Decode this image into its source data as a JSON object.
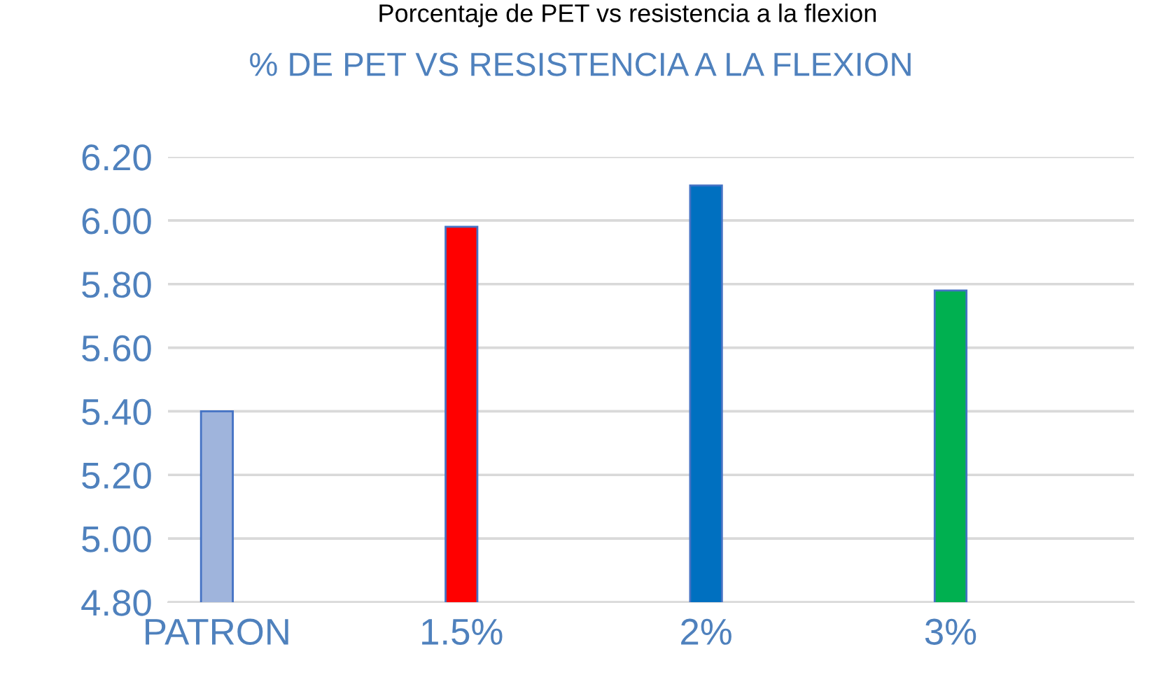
{
  "chart_data": {
    "type": "bar",
    "title": "% DE PET VS RESISTENCIA A LA FLEXION",
    "annotations": [
      "Porcentaje de PET vs resistencia a la flexion"
    ],
    "categories": [
      "PATRON",
      "1.5%",
      "2%",
      "3%"
    ],
    "values": [
      5.4,
      5.98,
      6.11,
      5.78
    ],
    "colors": [
      "#9fb4dc",
      "#ff0000",
      "#0070c0",
      "#00b050"
    ],
    "ylim": [
      4.8,
      6.2
    ],
    "yticks": [
      {
        "value": 4.8,
        "label": "4.80"
      },
      {
        "value": 5.0,
        "label": "5.00"
      },
      {
        "value": 5.2,
        "label": "5.20"
      },
      {
        "value": 5.4,
        "label": "5.40"
      },
      {
        "value": 5.6,
        "label": "5.60"
      },
      {
        "value": 5.8,
        "label": "5.80"
      },
      {
        "value": 6.0,
        "label": "6.00"
      },
      {
        "value": 6.2,
        "label": "6.20"
      }
    ],
    "grid": "y"
  }
}
